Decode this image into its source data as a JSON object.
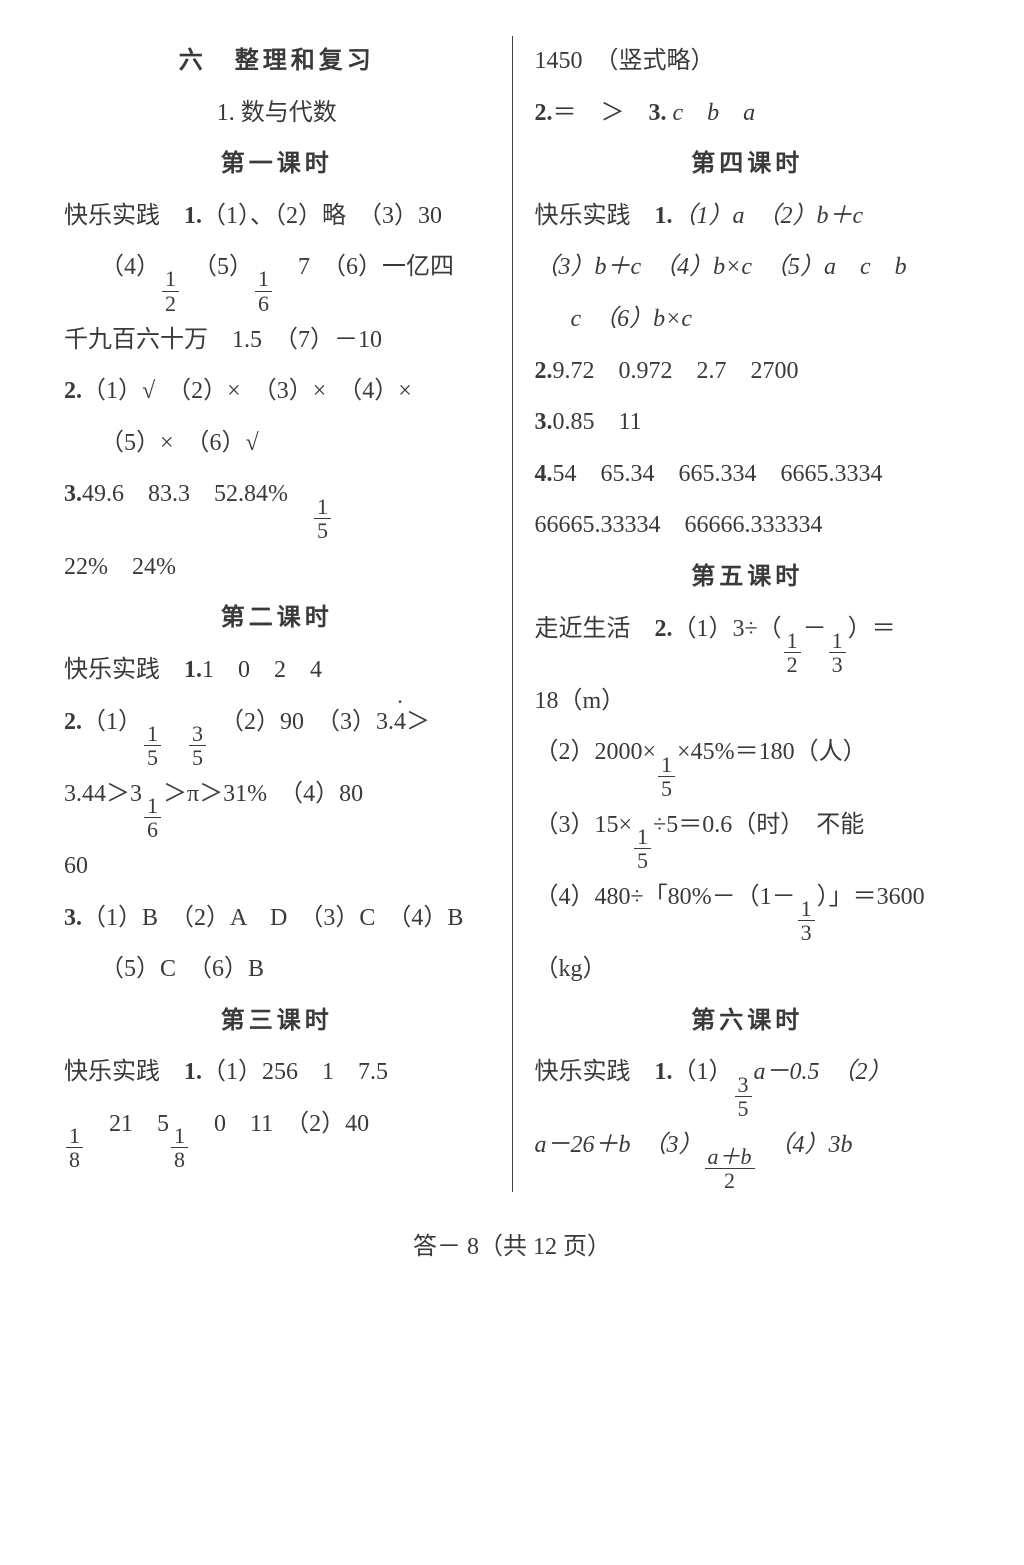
{
  "left": {
    "chapter": "六　整理和复习",
    "section": "1. 数与代数",
    "lesson1": "第一课时",
    "l1_1": "快乐实践　",
    "l1_1b": "1.",
    "l1_1c": "（1）、（2）略　（3）30",
    "l1_2a": "（4）",
    "l1_f1n": "1",
    "l1_f1d": "2",
    "l1_2b": "　（5）",
    "l1_f2n": "1",
    "l1_f2d": "6",
    "l1_2c": "　7　（6）一亿四",
    "l1_3": "千九百六十万　1.5　（7）－10",
    "l1_4": "2.",
    "l1_4b": "（1）√　（2）×　（3）×　（4）×",
    "l1_5": "（5）×　（6）√",
    "l1_6": "3.",
    "l1_6b": "49.6　83.3　52.84%　",
    "l1_f3n": "1",
    "l1_f3d": "5",
    "l1_7": "22%　24%",
    "lesson2": "第二课时",
    "l2_1": "快乐实践　",
    "l2_1b": "1.",
    "l2_1c": "1　0　2　4",
    "l2_2": "2.",
    "l2_2b": "（1）",
    "l2_f1n": "1",
    "l2_f1d": "5",
    "l2_spc": "　",
    "l2_f2n": "3",
    "l2_f2d": "5",
    "l2_2c": "　（2）90　（3）3.",
    "l2_rdot": "4",
    "l2_2d": "＞",
    "l2_3a": "3.44＞3",
    "l2_f3n": "1",
    "l2_f3d": "6",
    "l2_3b": "＞π＞31%　（4）80",
    "l2_4": "60",
    "l2_5": "3.",
    "l2_5b": "（1）B　（2）A　D　（3）C　（4）B",
    "l2_6": "（5）C　（6）B",
    "lesson3": "第三课时",
    "l3_1": "快乐实践　",
    "l3_1b": "1.",
    "l3_1c": "（1）256　1　7.5",
    "l3_f1n": "1",
    "l3_f1d": "8",
    "l3_2a": "　21　5",
    "l3_f2n": "1",
    "l3_f2d": "8",
    "l3_2b": "　0　11　（2）40"
  },
  "right": {
    "r0": "1450　（竖式略）",
    "r1": "2.",
    "r1b": "＝　＞　",
    "r1c": "3.",
    "r1d": " c　b　a",
    "lesson4": "第四课时",
    "r4_1": "快乐实践　",
    "r4_1b": "1.",
    "r4_1c": "（1）a　（2）b＋c",
    "r4_2": "（3）b＋c　（4）b×c　（5）a　c　b",
    "r4_3": "c　（6）b×c",
    "r4_4": "2.",
    "r4_4b": "9.72　0.972　2.7　2700",
    "r4_5": "3.",
    "r4_5b": "0.85　11",
    "r4_6": "4.",
    "r4_6b": "54　65.34　665.334　6665.3334",
    "r4_7": "66665.33334　66666.333334",
    "lesson5": "第五课时",
    "r5_1": "走近生活　",
    "r5_1b": "2.",
    "r5_1c": "（1）3÷（",
    "r5_f1n": "1",
    "r5_f1d": "2",
    "r5_1d": "－",
    "r5_f2n": "1",
    "r5_f2d": "3",
    "r5_1e": "）＝",
    "r5_2": "18（m）",
    "r5_3a": "（2）2000×",
    "r5_f3n": "1",
    "r5_f3d": "5",
    "r5_3b": "×45%＝180（人）",
    "r5_4a": "（3）15×",
    "r5_f4n": "1",
    "r5_f4d": "5",
    "r5_4b": "÷5＝0.6（时）　不能",
    "r5_5a": "（4）480÷「80%－（1－",
    "r5_f5n": "1",
    "r5_f5d": "3",
    "r5_5b": "）」＝3600",
    "r5_6": "（kg）",
    "lesson6": "第六课时",
    "r6_1": "快乐实践　",
    "r6_1b": "1.",
    "r6_1c": "（1）",
    "r6_f1n": "3",
    "r6_f1d": "5",
    "r6_1d": "a－0.5　（2）",
    "r6_2a": "a－26＋b　（3）",
    "r6_f2n": "a＋b",
    "r6_f2d": "2",
    "r6_2b": "　（4）3b"
  },
  "footer": "答－ 8（共 12 页）"
}
